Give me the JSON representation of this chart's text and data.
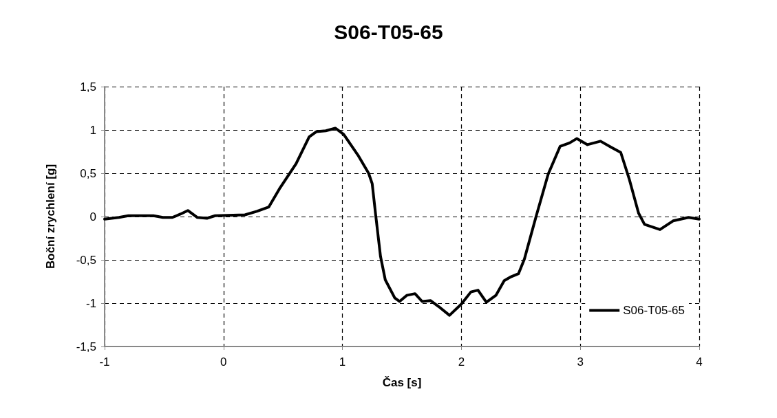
{
  "chart_data": {
    "type": "line",
    "title": "S06-T05-65",
    "xlabel": "Čas [s]",
    "ylabel": "Boční zrychlení [g]",
    "xlim": [
      -1,
      4
    ],
    "xticks": [
      -1,
      0,
      1,
      2,
      3,
      4
    ],
    "ylim": [
      -1.5,
      1.5
    ],
    "yticks": [
      {
        "value": -1.5,
        "label": "-1,5"
      },
      -1,
      {
        "value": -0.5,
        "label": "-0,5"
      },
      0,
      {
        "value": 0.5,
        "label": "0,5"
      },
      1,
      {
        "value": 1.5,
        "label": "1,5"
      }
    ],
    "grid": true,
    "legend": "bottom right",
    "marker": "none",
    "line_style": "solid",
    "series": [
      {
        "name": "S06-T05-65",
        "color": "#000000",
        "x": [
          -1,
          -0.88,
          -0.8,
          -0.59,
          -0.51,
          -0.43,
          -0.36,
          -0.3,
          -0.22,
          -0.14,
          -0.07,
          0.18,
          0.28,
          0.38,
          0.47,
          0.61,
          0.72,
          0.78,
          0.86,
          0.94,
          1.01,
          1.13,
          1.22,
          1.25,
          1.28,
          1.32,
          1.36,
          1.44,
          1.48,
          1.54,
          1.61,
          1.67,
          1.74,
          1.81,
          1.9,
          2.0,
          2.08,
          2.14,
          2.21,
          2.29,
          2.36,
          2.41,
          2.48,
          2.53,
          2.63,
          2.73,
          2.83,
          2.91,
          2.97,
          3.06,
          3.17,
          3.26,
          3.34,
          3.41,
          3.49,
          3.54,
          3.67,
          3.78,
          3.91,
          4.0
        ],
        "values": [
          -0.03,
          -0.01,
          0.01,
          0.01,
          -0.01,
          -0.01,
          0.03,
          0.07,
          -0.01,
          -0.02,
          0.01,
          0.02,
          0.06,
          0.11,
          0.32,
          0.61,
          0.92,
          0.98,
          0.99,
          1.02,
          0.95,
          0.71,
          0.5,
          0.38,
          0.01,
          -0.46,
          -0.73,
          -0.94,
          -0.98,
          -0.91,
          -0.89,
          -0.98,
          -0.97,
          -1.04,
          -1.14,
          -1.01,
          -0.87,
          -0.85,
          -0.99,
          -0.91,
          -0.74,
          -0.7,
          -0.66,
          -0.49,
          0.01,
          0.49,
          0.81,
          0.85,
          0.9,
          0.83,
          0.87,
          0.8,
          0.74,
          0.44,
          0.04,
          -0.09,
          -0.15,
          -0.05,
          -0.01,
          -0.03
        ]
      }
    ]
  }
}
